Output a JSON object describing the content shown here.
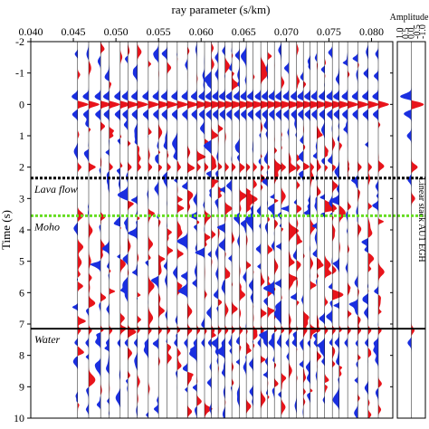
{
  "figure": {
    "main_panel": {
      "xlabel": "ray parameter (s/km)",
      "ylabel": "Time (s)",
      "xticks": [
        "0.040",
        "0.045",
        "0.050",
        "0.055",
        "0.060",
        "0.065",
        "0.070",
        "0.075",
        "0.080"
      ],
      "yticks": [
        "-2",
        "-1",
        "0",
        "1",
        "2",
        "3",
        "4",
        "5",
        "6",
        "7",
        "8",
        "9",
        "10"
      ],
      "annotations": [
        {
          "label": "Lava flow",
          "time": 2.35,
          "style": "dotted",
          "color": "#000000"
        },
        {
          "label": "Moho",
          "time": 3.55,
          "style": "dotted",
          "color": "#66dd22"
        },
        {
          "label": "Water",
          "time": 7.15,
          "style": "solid",
          "color": "#000000"
        }
      ]
    },
    "side_panel": {
      "title": "Amplitude",
      "ticks": [
        "1.0",
        "0.5",
        "0.0",
        "-0.5",
        "-1.0"
      ],
      "label": "Linear stack AU1 EGH"
    }
  },
  "chart_data": {
    "type": "seismic-wiggle",
    "xlabel": "ray parameter (s/km)",
    "ylabel": "Time (s)",
    "xlim": [
      0.04,
      0.0825
    ],
    "ylim": [
      -2,
      10
    ],
    "y_inverted": true,
    "positive_color": "#e8141b",
    "negative_color": "#1a2fe0",
    "traces_ray_parameter": [
      0.0455,
      0.0468,
      0.0482,
      0.0492,
      0.0505,
      0.0514,
      0.0525,
      0.0538,
      0.055,
      0.056,
      0.0572,
      0.0584,
      0.0595,
      0.0604,
      0.0612,
      0.062,
      0.0628,
      0.0636,
      0.0645,
      0.0653,
      0.0661,
      0.067,
      0.0678,
      0.0686,
      0.0694,
      0.0703,
      0.0712,
      0.072,
      0.0728,
      0.0736,
      0.0745,
      0.0754,
      0.0762,
      0.0772,
      0.0784,
      0.0796,
      0.0808
    ],
    "main_arrival": {
      "time": 0.0,
      "amplitude": 1.0
    },
    "stack": {
      "title": "Amplitude",
      "xlim": [
        -1.0,
        1.0
      ],
      "arrivals": [
        {
          "time": -0.25,
          "amplitude": -0.9
        },
        {
          "time": 0.0,
          "amplitude": 1.0
        },
        {
          "time": 0.3,
          "amplitude": -0.6
        },
        {
          "time": 1.0,
          "amplitude": -0.35
        },
        {
          "time": 2.0,
          "amplitude": 0.5
        },
        {
          "time": 2.4,
          "amplitude": -0.3
        },
        {
          "time": 3.0,
          "amplitude": 0.3
        },
        {
          "time": 7.2,
          "amplitude": 0.25
        },
        {
          "time": 7.6,
          "amplitude": -0.3
        }
      ]
    }
  }
}
